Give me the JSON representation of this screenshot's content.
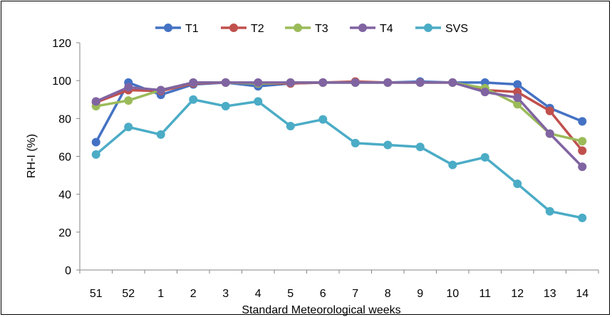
{
  "chart_data": {
    "type": "line",
    "xlabel": "Standard Meteorological weeks",
    "ylabel": "RH-I (%)",
    "ylim": [
      0,
      120
    ],
    "yticks": [
      0,
      20,
      40,
      60,
      80,
      100,
      120
    ],
    "grid": false,
    "legend_position": "top",
    "categories": [
      "51",
      "52",
      "1",
      "2",
      "3",
      "4",
      "5",
      "6",
      "7",
      "8",
      "9",
      "10",
      "11",
      "12",
      "13",
      "14"
    ],
    "series": [
      {
        "name": "T1",
        "color": "#4472C4",
        "values": [
          67.5,
          99,
          92.5,
          98,
          99,
          97,
          98.5,
          99,
          99,
          99,
          99.5,
          99,
          99,
          98,
          85.5,
          78.5
        ]
      },
      {
        "name": "T2",
        "color": "#C0504D",
        "values": [
          88.5,
          95,
          94.5,
          98.5,
          99,
          98.5,
          98.5,
          99,
          99.5,
          99,
          99,
          99,
          95,
          94,
          84,
          63
        ]
      },
      {
        "name": "T3",
        "color": "#9BBB59",
        "values": [
          86.5,
          89.5,
          95,
          99,
          99,
          98.5,
          99,
          99,
          99,
          99,
          99,
          99,
          96,
          87.5,
          72,
          68
        ]
      },
      {
        "name": "T4",
        "color": "#8064A2",
        "values": [
          89,
          96.5,
          95,
          99,
          99,
          99,
          99,
          99,
          99,
          99,
          99,
          99,
          94,
          91,
          72,
          54.5
        ]
      },
      {
        "name": "SVS",
        "color": "#4BACC6",
        "values": [
          61,
          75.5,
          71.5,
          90,
          86.5,
          89,
          76,
          79.5,
          67,
          66,
          65,
          55.5,
          59.5,
          45.5,
          31,
          27.5
        ]
      }
    ]
  }
}
